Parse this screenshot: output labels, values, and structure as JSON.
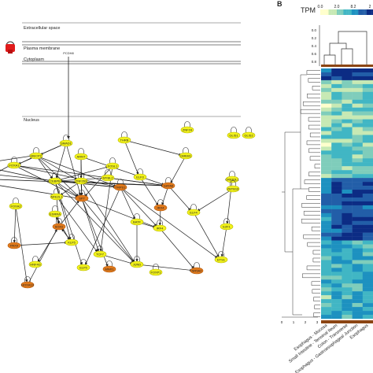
{
  "panel_b_letter": "B",
  "network": {
    "compartments": [
      "Extracellular space",
      "Plasma membrane",
      "Cytoplasm",
      "Nucleus"
    ],
    "membrane_protein": "PCDH8",
    "nodes": [
      {
        "id": "ZNF24",
        "color": "yellow"
      },
      {
        "id": "GLIS1",
        "color": "yellow"
      },
      {
        "id": "GLIS2",
        "color": "yellow"
      },
      {
        "id": "SMAD1",
        "color": "yellow"
      },
      {
        "id": "THRB",
        "color": "yellow"
      },
      {
        "id": "MECP2",
        "color": "yellow"
      },
      {
        "id": "ARNT",
        "color": "yellow"
      },
      {
        "id": "FOXA1",
        "color": "yellow"
      },
      {
        "id": "GMEB1",
        "color": "yellow"
      },
      {
        "id": "FOSL1",
        "color": "yellow"
      },
      {
        "id": "MYBL2",
        "color": "yellow"
      },
      {
        "id": "CEBPB",
        "color": "yellow"
      },
      {
        "id": "ZNF263",
        "color": "yellow"
      },
      {
        "id": "ELF3",
        "color": "yellow"
      },
      {
        "id": "CREB3L1",
        "color": "yellow"
      },
      {
        "id": "ZBTB16",
        "color": "yellow"
      },
      {
        "id": "FOXA2",
        "color": "yellow"
      },
      {
        "id": "ESRRA",
        "color": "yellow"
      },
      {
        "id": "NFE2L1",
        "color": "yellow"
      },
      {
        "id": "BATF",
        "color": "yellow"
      },
      {
        "id": "IRF4",
        "color": "yellow"
      },
      {
        "id": "ELF4",
        "color": "yellow"
      },
      {
        "id": "E2F1",
        "color": "yellow"
      },
      {
        "id": "TCF7",
        "color": "yellow"
      },
      {
        "id": "JUND",
        "color": "yellow"
      },
      {
        "id": "KLF5",
        "color": "yellow"
      },
      {
        "id": "FOXP1",
        "color": "yellow"
      },
      {
        "id": "ETS1",
        "color": "yellow"
      },
      {
        "id": "HNF4G",
        "color": "yellow"
      },
      {
        "id": "ELF5",
        "color": "yellow"
      },
      {
        "id": "GATA6",
        "color": "orange"
      },
      {
        "id": "SP7",
        "color": "orange"
      },
      {
        "id": "TRPS1",
        "color": "orange"
      },
      {
        "id": "SOX2",
        "color": "orange"
      },
      {
        "id": "IRX4",
        "color": "orange"
      },
      {
        "id": "MNX1",
        "color": "orange"
      },
      {
        "id": "HOXA13",
        "color": "orange"
      },
      {
        "id": "NR5A2",
        "color": "orange"
      },
      {
        "id": "PAX9",
        "color": "orange"
      }
    ],
    "legend_icon": "receptor-icon"
  },
  "heatmap": {
    "scale_label": "TPM",
    "scale_ticks": [
      "0.0",
      "2.0",
      "8.2",
      "2"
    ],
    "dendrogram_ticks": [
      "0.0",
      "0.2",
      "0.4",
      "0.6",
      "0.8"
    ],
    "row_tree_ticks": [
      "0",
      "1",
      "2",
      "3"
    ],
    "column_labels": [
      "Esophagus - Mucosa",
      "Small Intestine - Terminal Ileum",
      "Colon - Transverse",
      "Esophagus - Gastroesophageal Junction",
      "Esophagus"
    ],
    "colors": [
      "#ffffcc",
      "#c7e9b4",
      "#7fcdbb",
      "#41b6c4",
      "#1d91c0",
      "#225ea8",
      "#0c2c84"
    ]
  }
}
